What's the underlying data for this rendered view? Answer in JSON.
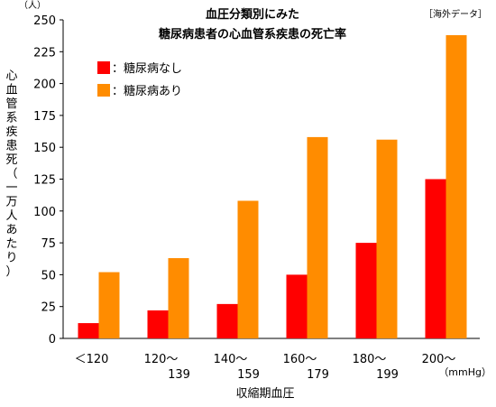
{
  "chart_data": {
    "type": "bar",
    "title": [
      "血圧分類別にみた",
      "糖尿病患者の心血管系疾患の死亡率"
    ],
    "source_note": "［海外データ］",
    "y_unit": "（人）",
    "ylabel": "心血管系疾患死（一万人あたり）",
    "xlabel": "収縮期血圧",
    "x_unit": "（mmHg）",
    "ylim": [
      0,
      250
    ],
    "yticks": [
      0,
      25,
      50,
      75,
      100,
      125,
      150,
      175,
      200,
      225,
      250
    ],
    "categories": [
      [
        "＜120"
      ],
      [
        "120～",
        "139"
      ],
      [
        "140～",
        "159"
      ],
      [
        "160～",
        "179"
      ],
      [
        "180～",
        "199"
      ],
      [
        "200～"
      ]
    ],
    "series": [
      {
        "name": "：糖尿病なし",
        "color": "#ff0000",
        "values": [
          12,
          22,
          27,
          50,
          75,
          125
        ]
      },
      {
        "name": "：糖尿病あり",
        "color": "#ff8c00",
        "values": [
          52,
          63,
          108,
          158,
          156,
          238
        ]
      }
    ],
    "legend_position": "top-left",
    "grid": false
  }
}
